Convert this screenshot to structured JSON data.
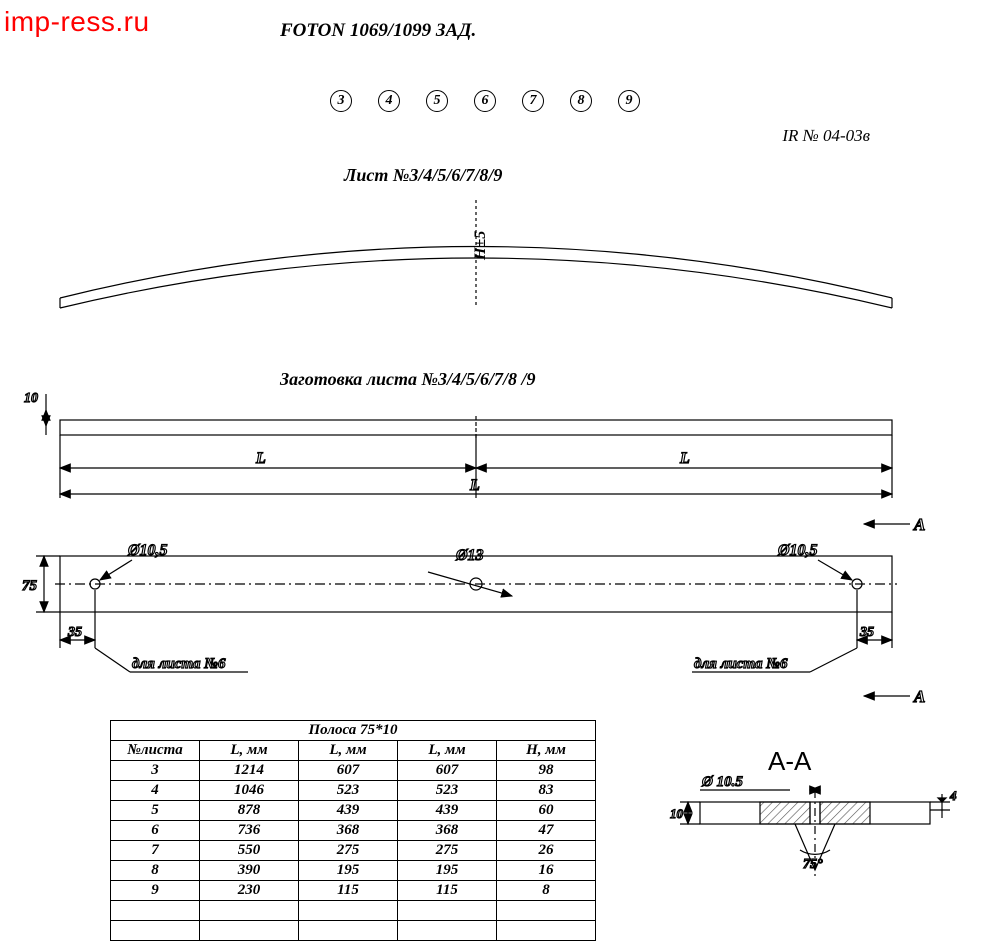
{
  "colors": {
    "bg": "#ffffff",
    "stroke": "#000000",
    "watermark": "#ff0000",
    "hatch": "#4a4a4a"
  },
  "watermark": "imp-ress.ru",
  "title": "FOTON 1069/1099  ЗАД.",
  "ir_no": "IR № 04-03в",
  "circled": [
    "3",
    "4",
    "5",
    "6",
    "7",
    "8",
    "9"
  ],
  "list_label": "Лист №3/4/5/6/7/8/9",
  "blank_label": "Заготовка листа №3/4/5/6/7/8 /9",
  "arc_tolerance": "H±5",
  "dims": {
    "ten": "10",
    "L_half": "L",
    "L_full": "L",
    "seventyfive": "75",
    "thirtyfive_l": "35",
    "thirtyfive_r": "35",
    "d10_5l": "Ø10,5",
    "d10_5r": "Ø10,5",
    "d13": "Ø13",
    "A_top": "A",
    "A_bot": "A",
    "for_sheet_l": "для листа №6",
    "for_sheet_r": "для листа №6"
  },
  "table": {
    "title": "Полоса 75*10",
    "headers": [
      "№листа",
      "L, мм",
      "L, мм",
      "L, мм",
      "H, мм"
    ],
    "rows": [
      [
        "3",
        "1214",
        "607",
        "607",
        "98"
      ],
      [
        "4",
        "1046",
        "523",
        "523",
        "83"
      ],
      [
        "5",
        "878",
        "439",
        "439",
        "60"
      ],
      [
        "6",
        "736",
        "368",
        "368",
        "47"
      ],
      [
        "7",
        "550",
        "275",
        "275",
        "26"
      ],
      [
        "8",
        "390",
        "195",
        "195",
        "16"
      ],
      [
        "9",
        "230",
        "115",
        "115",
        "8"
      ]
    ],
    "blank_rows": 2
  },
  "section": {
    "label": "A-A",
    "d10_5": "Ø 10.5",
    "ten": "10",
    "four": "4",
    "angle": "75°"
  },
  "fonts": {
    "title_size": 19,
    "label_size": 18,
    "dim_size": 15,
    "table_size": 15,
    "watermark_size": 28
  }
}
